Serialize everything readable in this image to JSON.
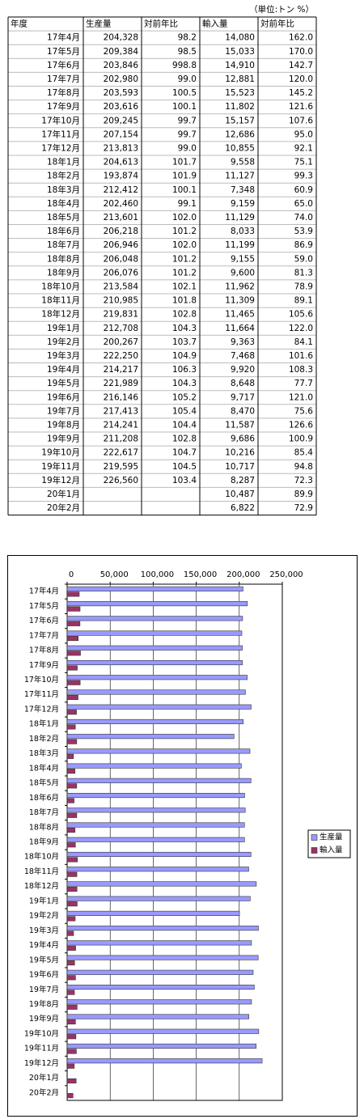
{
  "unit_note": "（単位:トン %）",
  "table": {
    "header": [
      "年度",
      "生産量",
      "対前年比",
      "輸入量",
      "対前年比"
    ],
    "rows": [
      [
        "17年4月",
        "204,328",
        "98.2",
        "14,080",
        "162.0"
      ],
      [
        "17年5月",
        "209,384",
        "98.5",
        "15,033",
        "170.0"
      ],
      [
        "17年6月",
        "203,846",
        "998.8",
        "14,910",
        "142.7"
      ],
      [
        "17年7月",
        "202,980",
        "99.0",
        "12,881",
        "120.0"
      ],
      [
        "17年8月",
        "203,593",
        "100.5",
        "15,523",
        "145.2"
      ],
      [
        "17年9月",
        "203,616",
        "100.1",
        "11,802",
        "121.6"
      ],
      [
        "17年10月",
        "209,245",
        "99.7",
        "15,157",
        "107.6"
      ],
      [
        "17年11月",
        "207,154",
        "99.7",
        "12,686",
        "95.0"
      ],
      [
        "17年12月",
        "213,813",
        "99.0",
        "10,855",
        "92.1"
      ],
      [
        "18年1月",
        "204,613",
        "101.7",
        "9,558",
        "75.1"
      ],
      [
        "18年2月",
        "193,874",
        "101.9",
        "11,127",
        "99.3"
      ],
      [
        "18年3月",
        "212,412",
        "100.1",
        "7,348",
        "60.9"
      ],
      [
        "18年4月",
        "202,460",
        "99.1",
        "9,159",
        "65.0"
      ],
      [
        "18年5月",
        "213,601",
        "102.0",
        "11,129",
        "74.0"
      ],
      [
        "18年6月",
        "206,218",
        "101.2",
        "8,033",
        "53.9"
      ],
      [
        "18年7月",
        "206,946",
        "102.0",
        "11,199",
        "86.9"
      ],
      [
        "18年8月",
        "206,048",
        "101.2",
        "9,155",
        "59.0"
      ],
      [
        "18年9月",
        "206,076",
        "101.2",
        "9,600",
        "81.3"
      ],
      [
        "18年10月",
        "213,584",
        "102.1",
        "11,962",
        "78.9"
      ],
      [
        "18年11月",
        "210,985",
        "101.8",
        "11,309",
        "89.1"
      ],
      [
        "18年12月",
        "219,831",
        "102.8",
        "11,465",
        "105.6"
      ],
      [
        "19年1月",
        "212,708",
        "104.3",
        "11,664",
        "122.0"
      ],
      [
        "19年2月",
        "200,267",
        "103.7",
        "9,363",
        "84.1"
      ],
      [
        "19年3月",
        "222,250",
        "104.9",
        "7,468",
        "101.6"
      ],
      [
        "19年4月",
        "214,217",
        "106.3",
        "9,920",
        "108.3"
      ],
      [
        "19年5月",
        "221,989",
        "104.3",
        "8,648",
        "77.7"
      ],
      [
        "19年6月",
        "216,146",
        "105.2",
        "9,717",
        "121.0"
      ],
      [
        "19年7月",
        "217,413",
        "105.4",
        "8,470",
        "75.6"
      ],
      [
        "19年8月",
        "214,241",
        "104.4",
        "11,587",
        "126.6"
      ],
      [
        "19年9月",
        "211,208",
        "102.8",
        "9,686",
        "100.9"
      ],
      [
        "19年10月",
        "222,617",
        "104.7",
        "10,216",
        "85.4"
      ],
      [
        "19年11月",
        "219,595",
        "104.5",
        "10,717",
        "94.8"
      ],
      [
        "19年12月",
        "226,560",
        "103.4",
        "8,287",
        "72.3"
      ],
      [
        "20年1月",
        null,
        null,
        "10,487",
        "89.9"
      ],
      [
        "20年2月",
        null,
        null,
        "6,822",
        "72.9"
      ]
    ]
  },
  "chart_data": {
    "type": "barh",
    "categories": [
      "17年4月",
      "17年5月",
      "17年6月",
      "17年7月",
      "17年8月",
      "17年9月",
      "17年10月",
      "17年11月",
      "17年12月",
      "18年1月",
      "18年2月",
      "18年3月",
      "18年4月",
      "18年5月",
      "18年6月",
      "18年7月",
      "18年8月",
      "18年9月",
      "18年10月",
      "18年11月",
      "18年12月",
      "19年1月",
      "19年2月",
      "19年3月",
      "19年4月",
      "19年5月",
      "19年6月",
      "19年7月",
      "19年8月",
      "19年9月",
      "19年10月",
      "19年11月",
      "19年12月",
      "20年1月",
      "20年2月"
    ],
    "series": [
      {
        "name": "生産量",
        "color": "#9999ff",
        "values": [
          204328,
          209384,
          203846,
          202980,
          203593,
          203616,
          209245,
          207154,
          213813,
          204613,
          193874,
          212412,
          202460,
          213601,
          206218,
          206946,
          206048,
          206076,
          213584,
          210985,
          219831,
          212708,
          200267,
          222250,
          214217,
          221989,
          216146,
          217413,
          214241,
          211208,
          222617,
          219595,
          226560,
          null,
          null
        ]
      },
      {
        "name": "輸入量",
        "color": "#993366",
        "values": [
          14080,
          15033,
          14910,
          12881,
          15523,
          11802,
          15157,
          12686,
          10855,
          9558,
          11127,
          7348,
          9159,
          11129,
          8033,
          11199,
          9155,
          9600,
          11962,
          11309,
          11465,
          11664,
          9363,
          7468,
          9920,
          8648,
          9717,
          8470,
          11587,
          9686,
          10216,
          10717,
          8287,
          10487,
          6822
        ]
      }
    ],
    "xlim": [
      0,
      250000
    ],
    "xticks": [
      0,
      {
        "value": 50000,
        "label": "50,000"
      },
      {
        "value": 100000,
        "label": "100,000"
      },
      {
        "value": 150000,
        "label": "150,000"
      },
      {
        "value": 200000,
        "label": "200,000"
      },
      {
        "value": 250000,
        "label": "250,000"
      }
    ],
    "grid": true,
    "legend": "right"
  }
}
